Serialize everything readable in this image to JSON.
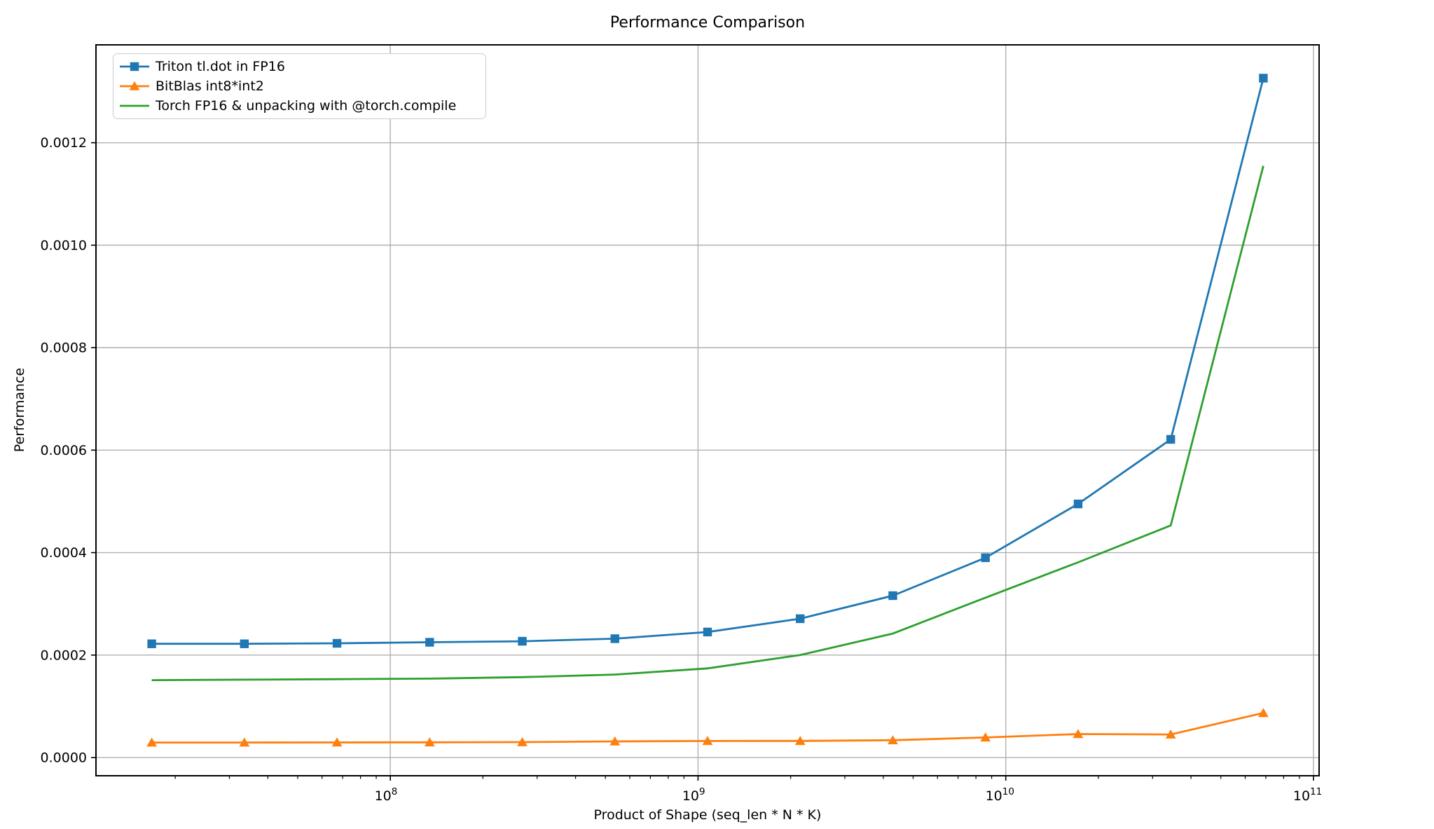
{
  "title": "Performance Comparison",
  "axes": {
    "xlabel": "Product of Shape (seq_len * N * K)",
    "ylabel": "Performance"
  },
  "colors": {
    "triton_blue": "#1f77b4",
    "bitblas_orange": "#ff7f0e",
    "torch_green": "#2ca02c",
    "grid": "#b0b0b0",
    "spine": "#000000",
    "legend_edge": "#cccccc",
    "background": "#ffffff"
  },
  "chart_data": {
    "type": "line",
    "title": "Performance Comparison",
    "xlabel": "Product of Shape (seq_len * N * K)",
    "ylabel": "Performance",
    "x_scale": "log10",
    "grid": true,
    "legend_position": "upper-left",
    "xlim_log10": [
      7.0435,
      11.0183
    ],
    "ylim": [
      -3.55e-05,
      0.001391
    ],
    "x_major_tick_exponents": [
      8,
      9,
      10,
      11
    ],
    "y_ticks": [
      0.0,
      0.0002,
      0.0004,
      0.0006,
      0.0008,
      0.001,
      0.0012
    ],
    "x": [
      16777216,
      33554432,
      67108864,
      134217728,
      268435456,
      536870912,
      1073741824,
      2147483648,
      4294967296,
      8589934592,
      17179869184,
      34359738368,
      68719476736
    ],
    "series": [
      {
        "name": "Triton tl.dot in FP16",
        "color": "#1f77b4",
        "marker": "square",
        "values": [
          0.000222,
          0.000222,
          0.000223,
          0.000225,
          0.000227,
          0.000232,
          0.000245,
          0.000271,
          0.000316,
          0.00039,
          0.000495,
          0.000621,
          0.001326
        ]
      },
      {
        "name": "BitBlas int8*int2",
        "color": "#ff7f0e",
        "marker": "triangle",
        "values": [
          2.93e-05,
          2.93e-05,
          2.95e-05,
          2.97e-05,
          3.01e-05,
          3.15e-05,
          3.24e-05,
          3.25e-05,
          3.38e-05,
          3.92e-05,
          4.59e-05,
          4.51e-05,
          8.7e-05
        ]
      },
      {
        "name": "Torch FP16 & unpacking with @torch.compile",
        "color": "#2ca02c",
        "marker": "none",
        "values": [
          0.000151,
          0.000152,
          0.000153,
          0.000154,
          0.000157,
          0.000162,
          0.000174,
          0.0002,
          0.000242,
          0.000312,
          0.000381,
          0.000453,
          0.001155
        ]
      }
    ]
  }
}
